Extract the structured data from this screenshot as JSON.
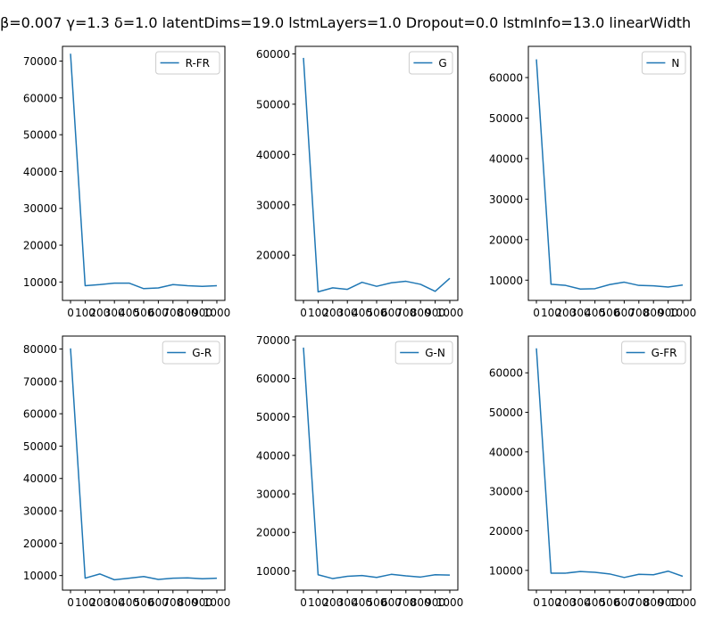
{
  "figure": {
    "title": "β=0.007 γ=1.3 δ=1.0 latentDims=19.0 lstmLayers=1.0 Dropout=0.0 lstmInfo=13.0 linearWidth"
  },
  "colors": {
    "line": "#1f77b4",
    "axis": "#000000",
    "background": "#ffffff",
    "legend_border": "#cccccc"
  },
  "chart_data": [
    {
      "type": "line",
      "legend": "top-right",
      "x_tick_labels": [
        "0",
        "100",
        "200",
        "300",
        "400",
        "500",
        "600",
        "700",
        "800",
        "900",
        "1000"
      ],
      "xlim": [
        -55,
        1055
      ],
      "ylim": [
        5000,
        74000
      ],
      "y_ticks": [
        10000,
        20000,
        30000,
        40000,
        50000,
        60000,
        70000
      ],
      "series": [
        {
          "name": "R-FR",
          "x": [
            0,
            100,
            200,
            300,
            400,
            500,
            600,
            700,
            800,
            900,
            1000
          ],
          "y": [
            72000,
            9000,
            9300,
            9700,
            9700,
            8200,
            8400,
            9300,
            9000,
            8800,
            9000
          ]
        }
      ]
    },
    {
      "type": "line",
      "legend": "top-right",
      "x_tick_labels": [
        "0",
        "100",
        "200",
        "300",
        "400",
        "500",
        "600",
        "700",
        "800",
        "900",
        "1000"
      ],
      "xlim": [
        -55,
        1055
      ],
      "ylim": [
        11000,
        61500
      ],
      "y_ticks": [
        20000,
        30000,
        40000,
        50000,
        60000
      ],
      "series": [
        {
          "name": "G",
          "x": [
            0,
            100,
            200,
            300,
            400,
            500,
            600,
            700,
            800,
            900,
            1000
          ],
          "y": [
            59200,
            12700,
            13500,
            13200,
            14600,
            13800,
            14500,
            14800,
            14200,
            12800,
            15400
          ]
        }
      ]
    },
    {
      "type": "line",
      "legend": "top-right",
      "x_tick_labels": [
        "0",
        "100",
        "200",
        "300",
        "400",
        "500",
        "600",
        "700",
        "800",
        "900",
        "1000"
      ],
      "xlim": [
        -55,
        1055
      ],
      "ylim": [
        5000,
        67700
      ],
      "y_ticks": [
        10000,
        20000,
        30000,
        40000,
        50000,
        60000
      ],
      "series": [
        {
          "name": "N",
          "x": [
            0,
            100,
            200,
            300,
            400,
            500,
            600,
            700,
            800,
            900,
            1000
          ],
          "y": [
            64500,
            9000,
            8700,
            7800,
            7900,
            8900,
            9500,
            8700,
            8600,
            8300,
            8800
          ]
        }
      ]
    },
    {
      "type": "line",
      "legend": "top-right",
      "x_tick_labels": [
        "0",
        "100",
        "200",
        "300",
        "400",
        "500",
        "600",
        "700",
        "800",
        "900",
        "1000"
      ],
      "xlim": [
        -55,
        1055
      ],
      "ylim": [
        5500,
        84000
      ],
      "y_ticks": [
        10000,
        20000,
        30000,
        40000,
        50000,
        60000,
        70000,
        80000
      ],
      "series": [
        {
          "name": "G-R",
          "x": [
            0,
            100,
            200,
            300,
            400,
            500,
            600,
            700,
            800,
            900,
            1000
          ],
          "y": [
            80200,
            9200,
            10500,
            8700,
            9200,
            9700,
            8800,
            9200,
            9300,
            9000,
            9200
          ]
        }
      ]
    },
    {
      "type": "line",
      "legend": "top-right",
      "x_tick_labels": [
        "0",
        "100",
        "200",
        "300",
        "400",
        "500",
        "600",
        "700",
        "800",
        "900",
        "1000"
      ],
      "xlim": [
        -55,
        1055
      ],
      "ylim": [
        5000,
        71000
      ],
      "y_ticks": [
        10000,
        20000,
        30000,
        40000,
        50000,
        60000,
        70000
      ],
      "series": [
        {
          "name": "G-N",
          "x": [
            0,
            100,
            200,
            300,
            400,
            500,
            600,
            700,
            800,
            900,
            1000
          ],
          "y": [
            68000,
            9000,
            8000,
            8600,
            8800,
            8300,
            9100,
            8700,
            8400,
            9000,
            8900
          ]
        }
      ]
    },
    {
      "type": "line",
      "legend": "top-right",
      "x_tick_labels": [
        "0",
        "100",
        "200",
        "300",
        "400",
        "500",
        "600",
        "700",
        "800",
        "900",
        "1000"
      ],
      "xlim": [
        -55,
        1055
      ],
      "ylim": [
        5000,
        69300
      ],
      "y_ticks": [
        10000,
        20000,
        30000,
        40000,
        50000,
        60000
      ],
      "series": [
        {
          "name": "G-FR",
          "x": [
            0,
            100,
            200,
            300,
            400,
            500,
            600,
            700,
            800,
            900,
            1000
          ],
          "y": [
            66200,
            9300,
            9300,
            9700,
            9500,
            9100,
            8200,
            9000,
            8900,
            9800,
            8500
          ]
        }
      ]
    }
  ]
}
